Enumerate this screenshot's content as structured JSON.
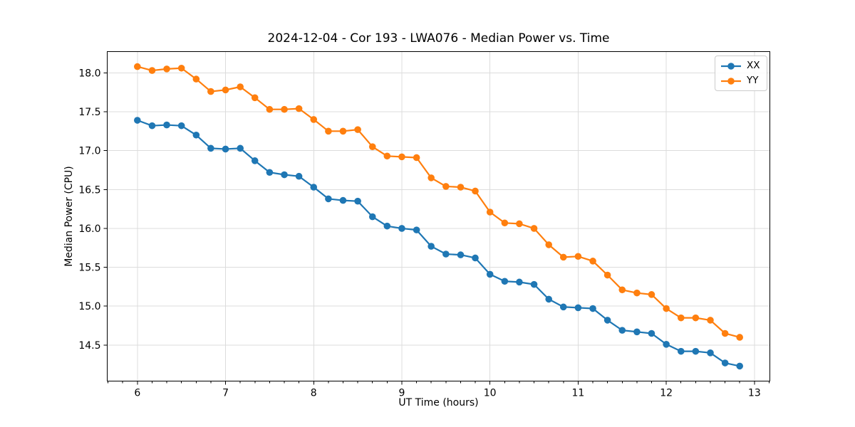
{
  "chart_data": {
    "type": "line",
    "title": "2024-12-04 - Cor 193 - LWA076 - Median Power vs. Time",
    "xlabel": "UT Time (hours)",
    "ylabel": "Median Power (CPU)",
    "xlim": [
      5.658,
      13.175
    ],
    "ylim": [
      14.037,
      18.273
    ],
    "xticks": [
      6,
      7,
      8,
      9,
      10,
      11,
      12,
      13
    ],
    "yticks": [
      14.5,
      15.0,
      15.5,
      16.0,
      16.5,
      17.0,
      17.5,
      18.0
    ],
    "x_minor_step_hours": 0.1667,
    "grid": true,
    "grid_color": "#dcdcdc",
    "axis_color": "#000000",
    "legend_position": "upper right",
    "x": [
      6.0,
      6.167,
      6.333,
      6.5,
      6.667,
      6.833,
      7.0,
      7.167,
      7.333,
      7.5,
      7.667,
      7.833,
      8.0,
      8.167,
      8.333,
      8.5,
      8.667,
      8.833,
      9.0,
      9.167,
      9.333,
      9.5,
      9.667,
      9.833,
      10.0,
      10.167,
      10.333,
      10.5,
      10.667,
      10.833,
      11.0,
      11.167,
      11.333,
      11.5,
      11.667,
      11.833,
      12.0,
      12.167,
      12.333,
      12.5,
      12.667,
      12.833
    ],
    "series": [
      {
        "name": "XX",
        "color": "#1f77b4",
        "values": [
          17.39,
          17.32,
          17.33,
          17.32,
          17.2,
          17.03,
          17.02,
          17.03,
          16.87,
          16.72,
          16.69,
          16.67,
          16.53,
          16.38,
          16.36,
          16.35,
          16.15,
          16.03,
          16.0,
          15.98,
          15.77,
          15.67,
          15.66,
          15.62,
          15.41,
          15.32,
          15.31,
          15.28,
          15.09,
          14.99,
          14.98,
          14.97,
          14.82,
          14.69,
          14.67,
          14.65,
          14.51,
          14.42,
          14.42,
          14.4,
          14.27,
          14.23
        ]
      },
      {
        "name": "YY",
        "color": "#ff7f0e",
        "values": [
          18.08,
          18.03,
          18.05,
          18.06,
          17.92,
          17.76,
          17.78,
          17.82,
          17.68,
          17.53,
          17.53,
          17.54,
          17.4,
          17.25,
          17.25,
          17.27,
          17.05,
          16.93,
          16.92,
          16.91,
          16.65,
          16.54,
          16.53,
          16.48,
          16.21,
          16.07,
          16.06,
          16.0,
          15.79,
          15.63,
          15.64,
          15.58,
          15.4,
          15.21,
          15.17,
          15.15,
          14.97,
          14.85,
          14.85,
          14.82,
          14.65,
          14.6
        ]
      }
    ]
  }
}
